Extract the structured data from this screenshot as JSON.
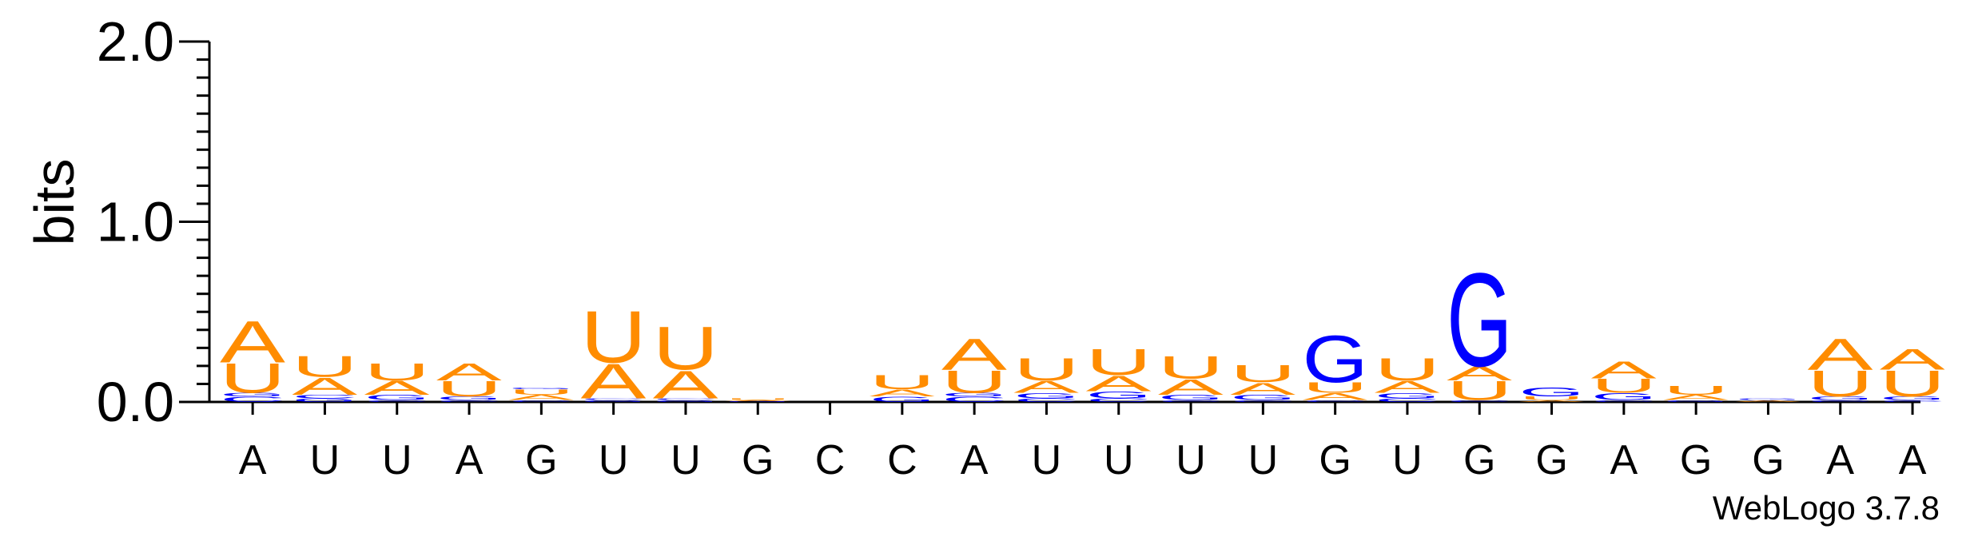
{
  "chart_data": {
    "type": "sequence-logo",
    "ylabel": "bits",
    "ylim": [
      0,
      2.0
    ],
    "yticks": [
      {
        "value": 0,
        "label": "0.0"
      },
      {
        "value": 1,
        "label": "1.0"
      },
      {
        "value": 2,
        "label": "2.0"
      }
    ],
    "credit": "WebLogo 3.7.8",
    "colors": {
      "A": "#ff8c00",
      "U": "#ff8c00",
      "G": "#0000ff",
      "C": "#0000ff"
    },
    "positions": [
      {
        "label": "A",
        "stack": [
          [
            "C",
            0.03
          ],
          [
            "G",
            0.02
          ],
          [
            "U",
            0.17
          ],
          [
            "A",
            0.24
          ]
        ]
      },
      {
        "label": "U",
        "stack": [
          [
            "G",
            0.02
          ],
          [
            "C",
            0.02
          ],
          [
            "A",
            0.1
          ],
          [
            "U",
            0.12
          ]
        ]
      },
      {
        "label": "U",
        "stack": [
          [
            "C",
            0.01
          ],
          [
            "G",
            0.03
          ],
          [
            "A",
            0.08
          ],
          [
            "U",
            0.1
          ]
        ]
      },
      {
        "label": "A",
        "stack": [
          [
            "C",
            0.01
          ],
          [
            "G",
            0.02
          ],
          [
            "U",
            0.09
          ],
          [
            "A",
            0.1
          ]
        ]
      },
      {
        "label": "G",
        "stack": [
          [
            "C",
            0.01
          ],
          [
            "A",
            0.03
          ],
          [
            "U",
            0.03
          ],
          [
            "G",
            0.01
          ]
        ]
      },
      {
        "label": "U",
        "stack": [
          [
            "G",
            0.01
          ],
          [
            "C",
            0.01
          ],
          [
            "A",
            0.2
          ],
          [
            "U",
            0.3
          ]
        ]
      },
      {
        "label": "U",
        "stack": [
          [
            "G",
            0.01
          ],
          [
            "C",
            0.01
          ],
          [
            "A",
            0.16
          ],
          [
            "U",
            0.25
          ]
        ]
      },
      {
        "label": "G",
        "stack": [
          [
            "G",
            0.005
          ],
          [
            "A",
            0.005
          ],
          [
            "U",
            0.01
          ]
        ]
      },
      {
        "label": "C",
        "stack": []
      },
      {
        "label": "C",
        "stack": [
          [
            "G",
            0.03
          ],
          [
            "A",
            0.04
          ],
          [
            "U",
            0.08
          ]
        ]
      },
      {
        "label": "A",
        "stack": [
          [
            "C",
            0.03
          ],
          [
            "G",
            0.02
          ],
          [
            "U",
            0.13
          ],
          [
            "A",
            0.18
          ]
        ]
      },
      {
        "label": "U",
        "stack": [
          [
            "C",
            0.02
          ],
          [
            "G",
            0.03
          ],
          [
            "A",
            0.07
          ],
          [
            "U",
            0.13
          ]
        ]
      },
      {
        "label": "U",
        "stack": [
          [
            "C",
            0.02
          ],
          [
            "G",
            0.04
          ],
          [
            "A",
            0.09
          ],
          [
            "U",
            0.15
          ]
        ]
      },
      {
        "label": "U",
        "stack": [
          [
            "C",
            0.01
          ],
          [
            "G",
            0.03
          ],
          [
            "A",
            0.09
          ],
          [
            "U",
            0.13
          ]
        ]
      },
      {
        "label": "U",
        "stack": [
          [
            "C",
            0.01
          ],
          [
            "G",
            0.03
          ],
          [
            "A",
            0.07
          ],
          [
            "U",
            0.1
          ]
        ]
      },
      {
        "label": "G",
        "stack": [
          [
            "C",
            0.01
          ],
          [
            "A",
            0.04
          ],
          [
            "U",
            0.06
          ],
          [
            "G",
            0.27
          ]
        ]
      },
      {
        "label": "U",
        "stack": [
          [
            "C",
            0.02
          ],
          [
            "G",
            0.03
          ],
          [
            "A",
            0.07
          ],
          [
            "U",
            0.13
          ]
        ]
      },
      {
        "label": "G",
        "stack": [
          [
            "C",
            0.01
          ],
          [
            "U",
            0.11
          ],
          [
            "A",
            0.08
          ],
          [
            "G",
            0.54
          ]
        ]
      },
      {
        "label": "G",
        "stack": [
          [
            "A",
            0.01
          ],
          [
            "U",
            0.02
          ],
          [
            "G",
            0.05
          ]
        ]
      },
      {
        "label": "A",
        "stack": [
          [
            "C",
            0.01
          ],
          [
            "G",
            0.04
          ],
          [
            "U",
            0.08
          ],
          [
            "A",
            0.1
          ]
        ]
      },
      {
        "label": "G",
        "stack": [
          [
            "G",
            0.01
          ],
          [
            "A",
            0.03
          ],
          [
            "U",
            0.05
          ]
        ]
      },
      {
        "label": "G",
        "stack": [
          [
            "A",
            0.01
          ],
          [
            "G",
            0.01
          ]
        ]
      },
      {
        "label": "A",
        "stack": [
          [
            "C",
            0.01
          ],
          [
            "G",
            0.02
          ],
          [
            "U",
            0.15
          ],
          [
            "A",
            0.18
          ]
        ]
      },
      {
        "label": "A",
        "stack": [
          [
            "C",
            0.01
          ],
          [
            "G",
            0.02
          ],
          [
            "U",
            0.15
          ],
          [
            "A",
            0.12
          ]
        ]
      }
    ]
  }
}
